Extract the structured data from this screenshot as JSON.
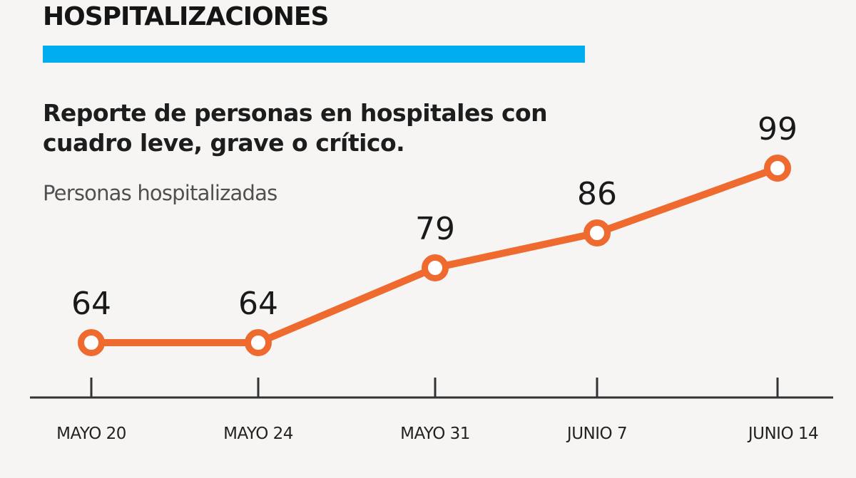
{
  "header": {
    "title": "HOSPITALIZACIONES",
    "accent_color": "#00aeef"
  },
  "subtitle": " Reporte de personas en hospitales con cuadro leve, grave o crítico.",
  "chart_data": {
    "type": "line",
    "title": "HOSPITALIZACIONES",
    "subtitle": "Reporte de personas en hospitales con cuadro leve, grave o crítico.",
    "ylabel": "Personas hospitalizadas",
    "xlabel": "",
    "categories": [
      "MAYO 20",
      "MAYO 24",
      "MAYO 31",
      "JUNIO 7",
      "JUNIO 14"
    ],
    "series": [
      {
        "values": [
          64,
          64,
          79,
          86,
          99
        ],
        "color": "#ee6a2f"
      }
    ],
    "data_labels": [
      "64",
      "64",
      "79",
      "86",
      "99"
    ],
    "grid": false,
    "legend": "none",
    "axis_color": "#333333"
  }
}
